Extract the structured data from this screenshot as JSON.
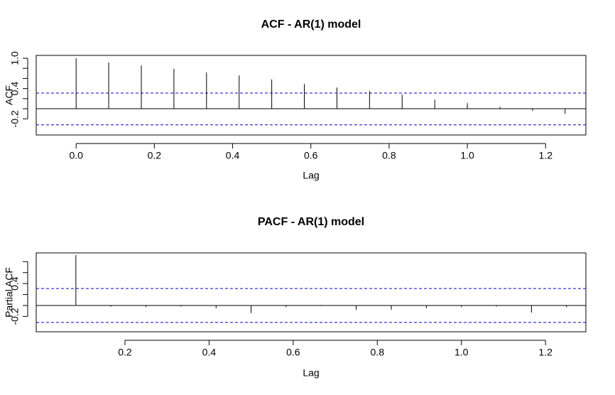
{
  "chart_data": [
    {
      "type": "stem",
      "title": "ACF - AR(1) model",
      "x_label": "Lag",
      "y_label": "ACF",
      "x": [
        0,
        0.0833,
        0.1667,
        0.25,
        0.3333,
        0.4167,
        0.5,
        0.5833,
        0.6667,
        0.75,
        0.8333,
        0.9167,
        1.0,
        1.0833,
        1.1667,
        1.25
      ],
      "values": [
        1.0,
        0.915,
        0.86,
        0.79,
        0.72,
        0.66,
        0.58,
        0.49,
        0.42,
        0.35,
        0.28,
        0.18,
        0.11,
        0.04,
        -0.04,
        -0.1
      ],
      "color": "#000000",
      "xlim": [
        -0.102,
        1.303
      ],
      "ylim": [
        -0.52,
        1.056
      ],
      "xticks": [
        {
          "value": 0,
          "label": "0.0"
        },
        0.2,
        0.4,
        0.6,
        0.8,
        {
          "value": 1,
          "label": "1.0"
        },
        1.2
      ],
      "yticks": [
        -0.2,
        0.4,
        {
          "value": 1,
          "label": "1.0"
        }
      ],
      "yminorticks": [
        0,
        0.2,
        0.6,
        0.8
      ],
      "confidence_bounds": [
        0.31,
        -0.32
      ],
      "bound_color": "#0000cc"
    },
    {
      "type": "stem",
      "title": "PACF - AR(1) model",
      "x_label": "Lag",
      "y_label": "Partial ACF",
      "x": [
        0.0833,
        0.1667,
        0.25,
        0.3333,
        0.4167,
        0.5,
        0.5833,
        0.6667,
        0.75,
        0.8333,
        0.9167,
        1.0,
        1.0833,
        1.1667,
        1.25
      ],
      "values": [
        0.92,
        -0.02,
        -0.03,
        -0.02,
        -0.05,
        -0.14,
        -0.03,
        0.01,
        -0.08,
        -0.08,
        -0.05,
        -0.03,
        -0.02,
        -0.13,
        -0.03
      ],
      "color": "#000000",
      "xlim": [
        -0.011,
        1.296
      ],
      "ylim": [
        -0.48,
        0.96
      ],
      "xticks": [
        0.2,
        0.4,
        0.6,
        0.8,
        {
          "value": 1,
          "label": "1.0"
        },
        1.2
      ],
      "yticks": [
        -0.2,
        0.4
      ],
      "yminorticks": [
        0,
        0.2,
        0.6,
        0.8
      ],
      "confidence_bounds": [
        0.31,
        -0.31
      ],
      "bound_color": "#0000cc"
    }
  ]
}
